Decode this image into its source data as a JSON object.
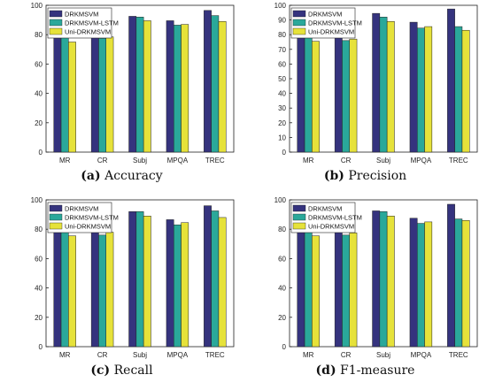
{
  "legend_labels": [
    "DRKMSVM",
    "DRKMSVM-LSTM",
    "Uni-DRKMSVM"
  ],
  "series_colors": [
    "#35337e",
    "#2aa89a",
    "#e6e23a"
  ],
  "chart_data": [
    {
      "type": "bar",
      "panel_label": "(a)",
      "caption": "Accuracy",
      "categories": [
        "MR",
        "CR",
        "Subj",
        "MPQA",
        "TREC"
      ],
      "ylim": [
        0,
        100
      ],
      "yticks": [
        0,
        20,
        40,
        60,
        80,
        100
      ],
      "grid": false,
      "legend": "top-left",
      "series": [
        {
          "name": "DRKMSVM",
          "values": [
            79.2,
            80.0,
            92.5,
            89.5,
            96.5
          ]
        },
        {
          "name": "DRKMSVM-LSTM",
          "values": [
            78.5,
            77.5,
            92.0,
            86.5,
            93.0
          ]
        },
        {
          "name": "Uni-DRKMSVM",
          "values": [
            75.0,
            78.5,
            89.5,
            87.0,
            89.0
          ]
        }
      ]
    },
    {
      "type": "bar",
      "panel_label": "(b)",
      "caption": "Precision",
      "categories": [
        "MR",
        "CR",
        "Subj",
        "MPQA",
        "TREC"
      ],
      "ylim": [
        0,
        100
      ],
      "yticks": [
        0,
        10,
        20,
        30,
        40,
        50,
        60,
        70,
        80,
        90,
        100
      ],
      "grid": false,
      "legend": "top-left",
      "series": [
        {
          "name": "DRKMSVM",
          "values": [
            79.0,
            78.0,
            94.5,
            88.5,
            97.5
          ]
        },
        {
          "name": "DRKMSVM-LSTM",
          "values": [
            78.5,
            76.0,
            92.0,
            84.5,
            85.5
          ]
        },
        {
          "name": "Uni-DRKMSVM",
          "values": [
            75.5,
            77.0,
            89.0,
            85.5,
            83.0
          ]
        }
      ]
    },
    {
      "type": "bar",
      "panel_label": "(c)",
      "caption": "Recall",
      "categories": [
        "MR",
        "CR",
        "Subj",
        "MPQA",
        "TREC"
      ],
      "ylim": [
        0,
        100
      ],
      "yticks": [
        0,
        20,
        40,
        60,
        80,
        100
      ],
      "grid": false,
      "legend": "top-left",
      "series": [
        {
          "name": "DRKMSVM",
          "values": [
            79.5,
            78.0,
            92.0,
            86.5,
            96.0
          ]
        },
        {
          "name": "DRKMSVM-LSTM",
          "values": [
            78.5,
            76.0,
            92.0,
            83.0,
            92.5
          ]
        },
        {
          "name": "Uni-DRKMSVM",
          "values": [
            75.5,
            78.0,
            89.0,
            84.5,
            88.0
          ]
        }
      ]
    },
    {
      "type": "bar",
      "panel_label": "(d)",
      "caption": "F1-measure",
      "categories": [
        "MR",
        "CR",
        "Subj",
        "MPQA",
        "TREC"
      ],
      "ylim": [
        0,
        100
      ],
      "yticks": [
        0,
        20,
        40,
        60,
        80,
        100
      ],
      "grid": false,
      "legend": "top-left",
      "series": [
        {
          "name": "DRKMSVM",
          "values": [
            79.2,
            79.0,
            92.5,
            87.5,
            97.0
          ]
        },
        {
          "name": "DRKMSVM-LSTM",
          "values": [
            78.5,
            76.0,
            92.0,
            84.0,
            87.0
          ]
        },
        {
          "name": "Uni-DRKMSVM",
          "values": [
            75.5,
            77.5,
            89.0,
            85.0,
            86.0
          ]
        }
      ]
    }
  ]
}
